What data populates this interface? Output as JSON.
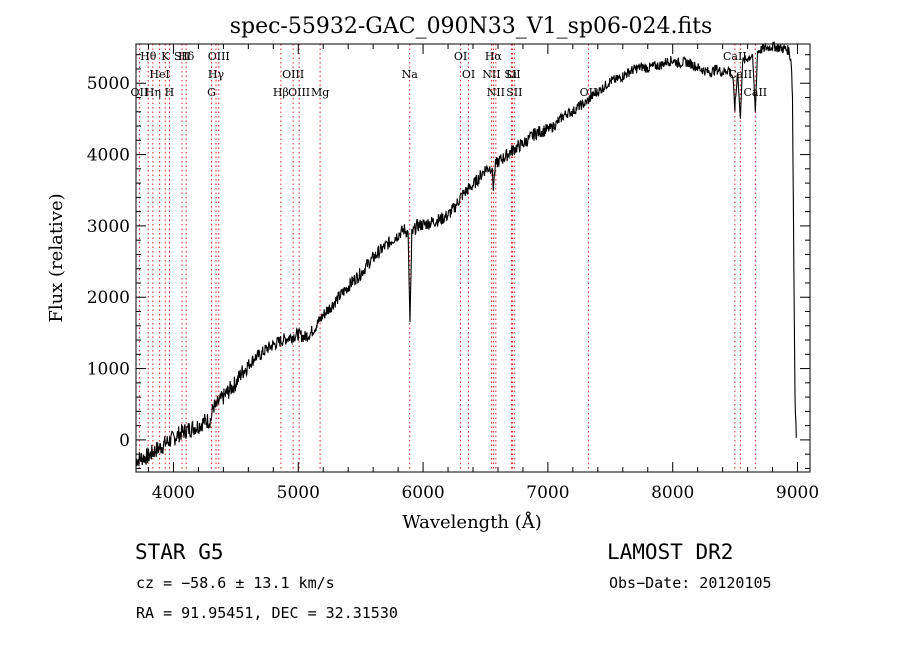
{
  "chart_data": {
    "type": "line",
    "title": "spec-55932-GAC_090N33_V1_sp06-024.fits",
    "xlabel": "Wavelength (Å)",
    "ylabel": "Flux (relative)",
    "xlim": [
      3700,
      9100
    ],
    "ylim": [
      -450,
      5550
    ],
    "xticks": [
      4000,
      5000,
      6000,
      7000,
      8000,
      9000
    ],
    "yticks": [
      0,
      1000,
      2000,
      3000,
      4000,
      5000
    ],
    "grid": false,
    "series": [
      {
        "x": [
          3700,
          3750,
          3800,
          3850,
          3900,
          3950,
          4000,
          4050,
          4100,
          4150,
          4200,
          4250,
          4300,
          4320,
          4340,
          4360,
          4400,
          4450,
          4500,
          4550,
          4600,
          4650,
          4700,
          4750,
          4800,
          4850,
          4900,
          4950,
          5000,
          5050,
          5100,
          5150,
          5200,
          5250,
          5300,
          5350,
          5400,
          5450,
          5500,
          5550,
          5600,
          5650,
          5700,
          5750,
          5800,
          5850,
          5880,
          5895,
          5910,
          5950,
          6000,
          6050,
          6100,
          6150,
          6200,
          6250,
          6300,
          6350,
          6400,
          6450,
          6500,
          6550,
          6563,
          6580,
          6600,
          6650,
          6700,
          6750,
          6800,
          6850,
          6900,
          6950,
          7000,
          7050,
          7100,
          7150,
          7200,
          7250,
          7300,
          7350,
          7400,
          7450,
          7500,
          7550,
          7600,
          7650,
          7700,
          7750,
          7800,
          7850,
          7900,
          7950,
          8000,
          8050,
          8100,
          8150,
          8200,
          8250,
          8300,
          8350,
          8400,
          8450,
          8480,
          8498,
          8520,
          8542,
          8560,
          8600,
          8640,
          8662,
          8680,
          8720,
          8760,
          8800,
          8850,
          8900,
          8930,
          8950,
          8960,
          8970,
          8980,
          8990
        ],
        "y": [
          -280,
          -250,
          -230,
          -150,
          -100,
          -30,
          20,
          90,
          130,
          170,
          200,
          260,
          280,
          480,
          450,
          520,
          600,
          700,
          800,
          950,
          1050,
          1150,
          1200,
          1280,
          1330,
          1380,
          1420,
          1450,
          1480,
          1440,
          1500,
          1620,
          1750,
          1850,
          1950,
          2050,
          2150,
          2250,
          2330,
          2450,
          2550,
          2640,
          2720,
          2800,
          2880,
          2950,
          2900,
          1650,
          2880,
          3000,
          3020,
          3040,
          3070,
          3100,
          3150,
          3250,
          3400,
          3500,
          3570,
          3680,
          3800,
          3820,
          3550,
          3850,
          3900,
          3960,
          4040,
          4100,
          4150,
          4220,
          4300,
          4330,
          4350,
          4400,
          4500,
          4580,
          4600,
          4680,
          4720,
          4810,
          4880,
          4950,
          5030,
          5050,
          5100,
          5160,
          5200,
          5230,
          5210,
          5240,
          5250,
          5300,
          5320,
          5280,
          5300,
          5270,
          5220,
          5180,
          5150,
          5200,
          5150,
          5200,
          5100,
          4650,
          5150,
          4500,
          5300,
          5350,
          5400,
          4600,
          5450,
          5480,
          5500,
          5520,
          5500,
          5480,
          5460,
          5300,
          4800,
          2500,
          600,
          30
        ]
      }
    ],
    "lines": [
      {
        "name": "Hθ",
        "x": 3798
      },
      {
        "name": "OII",
        "x": 3727
      },
      {
        "name": "Hη",
        "x": 3835
      },
      {
        "name": "HeI",
        "x": 3889
      },
      {
        "name": "K",
        "x": 3934
      },
      {
        "name": "H",
        "x": 3968
      },
      {
        "name": "SII",
        "x": 4069
      },
      {
        "name": "Hδ",
        "x": 4102
      },
      {
        "name": "Hγ",
        "x": 4341
      },
      {
        "name": "OIII",
        "x": 4363
      },
      {
        "name": "G",
        "x": 4305
      },
      {
        "name": "Hβ",
        "x": 4861
      },
      {
        "name": "OIII",
        "x": 4959
      },
      {
        "name": "OIII",
        "x": 5007
      },
      {
        "name": "Mg",
        "x": 5175
      },
      {
        "name": "Na",
        "x": 5893
      },
      {
        "name": "OI",
        "x": 6300
      },
      {
        "name": "OI",
        "x": 6364
      },
      {
        "name": "NII",
        "x": 6548
      },
      {
        "name": "Hα",
        "x": 6563
      },
      {
        "name": "NII",
        "x": 6583
      },
      {
        "name": "Li",
        "x": 6708
      },
      {
        "name": "SII",
        "x": 6716
      },
      {
        "name": "SII",
        "x": 6731
      },
      {
        "name": "OII",
        "x": 7325
      },
      {
        "name": "CaII",
        "x": 8498
      },
      {
        "name": "CaII",
        "x": 8542
      },
      {
        "name": "CaII",
        "x": 8662
      }
    ]
  },
  "footer": {
    "object": "STAR    G5",
    "survey": "LAMOST DR2",
    "cz": "cz = −58.6 ± 13.1 km/s",
    "obs_date": "Obs−Date: 20120105",
    "radec": "RA =  91.95451, DEC =  32.31530"
  }
}
